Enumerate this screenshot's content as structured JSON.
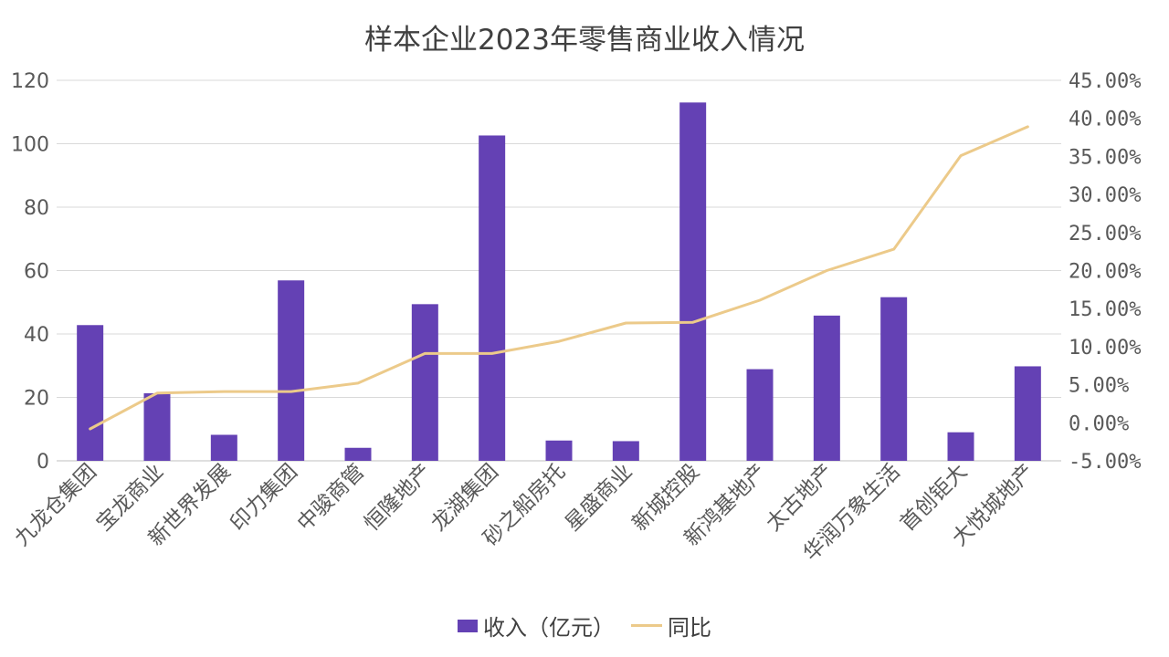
{
  "chart_data": {
    "type": "bar",
    "title": "样本企业2023年零售商业收入情况",
    "categories": [
      "九龙仓集团",
      "宝龙商业",
      "新世界发展",
      "印力集团",
      "中骏商管",
      "恒隆地产",
      "龙湖集团",
      "砂之船房托",
      "星盛商业",
      "新城控股",
      "新鸿基地产",
      "太古地产",
      "华润万象生活",
      "首创钜大",
      "大悦城地产"
    ],
    "series": [
      {
        "name": "收入（亿元）",
        "type": "bar",
        "axis": "left",
        "color": "#6441b4",
        "values": [
          42.8,
          21.3,
          8.2,
          56.9,
          4.1,
          49.4,
          102.6,
          6.4,
          6.2,
          113.0,
          28.9,
          45.8,
          51.6,
          9.0,
          29.8
        ]
      },
      {
        "name": "同比",
        "type": "line",
        "axis": "right",
        "color": "#ecca8a",
        "values": [
          -0.008,
          0.039,
          0.041,
          0.041,
          0.052,
          0.091,
          0.091,
          0.107,
          0.131,
          0.132,
          0.161,
          0.2,
          0.228,
          0.351,
          0.389
        ]
      }
    ],
    "ylim": [
      0,
      120
    ],
    "yticks": [
      0,
      20,
      40,
      60,
      80,
      100,
      120
    ],
    "y2lim": [
      -0.05,
      0.45
    ],
    "y2ticks": [
      "-5.00%",
      "0.00%",
      "5.00%",
      "10.00%",
      "15.00%",
      "20.00%",
      "25.00%",
      "30.00%",
      "35.00%",
      "40.00%",
      "45.00%"
    ],
    "grid": true,
    "legend_position": "bottom"
  }
}
